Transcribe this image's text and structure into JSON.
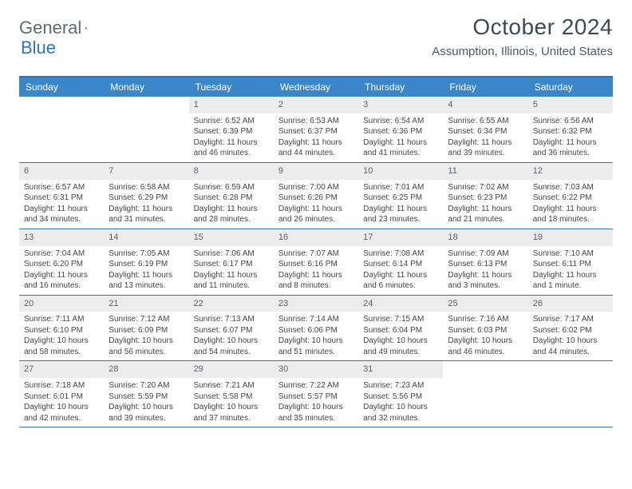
{
  "brand": {
    "word1": "General",
    "word2": "Blue"
  },
  "header": {
    "title": "October 2024",
    "location": "Assumption, Illinois, United States"
  },
  "colors": {
    "header_bar": "#3a86c8",
    "rule": "#2f74b5",
    "day_bg": "#ececec",
    "text": "#333333",
    "brand_gray": "#5f6a72",
    "brand_blue": "#2f74b5"
  },
  "calendar": {
    "type": "table",
    "dow": [
      "Sunday",
      "Monday",
      "Tuesday",
      "Wednesday",
      "Thursday",
      "Friday",
      "Saturday"
    ],
    "weeks": [
      [
        null,
        null,
        {
          "day": "1",
          "sunrise": "Sunrise: 6:52 AM",
          "sunset": "Sunset: 6:39 PM",
          "daylight": "Daylight: 11 hours and 46 minutes."
        },
        {
          "day": "2",
          "sunrise": "Sunrise: 6:53 AM",
          "sunset": "Sunset: 6:37 PM",
          "daylight": "Daylight: 11 hours and 44 minutes."
        },
        {
          "day": "3",
          "sunrise": "Sunrise: 6:54 AM",
          "sunset": "Sunset: 6:36 PM",
          "daylight": "Daylight: 11 hours and 41 minutes."
        },
        {
          "day": "4",
          "sunrise": "Sunrise: 6:55 AM",
          "sunset": "Sunset: 6:34 PM",
          "daylight": "Daylight: 11 hours and 39 minutes."
        },
        {
          "day": "5",
          "sunrise": "Sunrise: 6:56 AM",
          "sunset": "Sunset: 6:32 PM",
          "daylight": "Daylight: 11 hours and 36 minutes."
        }
      ],
      [
        {
          "day": "6",
          "sunrise": "Sunrise: 6:57 AM",
          "sunset": "Sunset: 6:31 PM",
          "daylight": "Daylight: 11 hours and 34 minutes."
        },
        {
          "day": "7",
          "sunrise": "Sunrise: 6:58 AM",
          "sunset": "Sunset: 6:29 PM",
          "daylight": "Daylight: 11 hours and 31 minutes."
        },
        {
          "day": "8",
          "sunrise": "Sunrise: 6:59 AM",
          "sunset": "Sunset: 6:28 PM",
          "daylight": "Daylight: 11 hours and 28 minutes."
        },
        {
          "day": "9",
          "sunrise": "Sunrise: 7:00 AM",
          "sunset": "Sunset: 6:26 PM",
          "daylight": "Daylight: 11 hours and 26 minutes."
        },
        {
          "day": "10",
          "sunrise": "Sunrise: 7:01 AM",
          "sunset": "Sunset: 6:25 PM",
          "daylight": "Daylight: 11 hours and 23 minutes."
        },
        {
          "day": "11",
          "sunrise": "Sunrise: 7:02 AM",
          "sunset": "Sunset: 6:23 PM",
          "daylight": "Daylight: 11 hours and 21 minutes."
        },
        {
          "day": "12",
          "sunrise": "Sunrise: 7:03 AM",
          "sunset": "Sunset: 6:22 PM",
          "daylight": "Daylight: 11 hours and 18 minutes."
        }
      ],
      [
        {
          "day": "13",
          "sunrise": "Sunrise: 7:04 AM",
          "sunset": "Sunset: 6:20 PM",
          "daylight": "Daylight: 11 hours and 16 minutes."
        },
        {
          "day": "14",
          "sunrise": "Sunrise: 7:05 AM",
          "sunset": "Sunset: 6:19 PM",
          "daylight": "Daylight: 11 hours and 13 minutes."
        },
        {
          "day": "15",
          "sunrise": "Sunrise: 7:06 AM",
          "sunset": "Sunset: 6:17 PM",
          "daylight": "Daylight: 11 hours and 11 minutes."
        },
        {
          "day": "16",
          "sunrise": "Sunrise: 7:07 AM",
          "sunset": "Sunset: 6:16 PM",
          "daylight": "Daylight: 11 hours and 8 minutes."
        },
        {
          "day": "17",
          "sunrise": "Sunrise: 7:08 AM",
          "sunset": "Sunset: 6:14 PM",
          "daylight": "Daylight: 11 hours and 6 minutes."
        },
        {
          "day": "18",
          "sunrise": "Sunrise: 7:09 AM",
          "sunset": "Sunset: 6:13 PM",
          "daylight": "Daylight: 11 hours and 3 minutes."
        },
        {
          "day": "19",
          "sunrise": "Sunrise: 7:10 AM",
          "sunset": "Sunset: 6:11 PM",
          "daylight": "Daylight: 11 hours and 1 minute."
        }
      ],
      [
        {
          "day": "20",
          "sunrise": "Sunrise: 7:11 AM",
          "sunset": "Sunset: 6:10 PM",
          "daylight": "Daylight: 10 hours and 58 minutes."
        },
        {
          "day": "21",
          "sunrise": "Sunrise: 7:12 AM",
          "sunset": "Sunset: 6:09 PM",
          "daylight": "Daylight: 10 hours and 56 minutes."
        },
        {
          "day": "22",
          "sunrise": "Sunrise: 7:13 AM",
          "sunset": "Sunset: 6:07 PM",
          "daylight": "Daylight: 10 hours and 54 minutes."
        },
        {
          "day": "23",
          "sunrise": "Sunrise: 7:14 AM",
          "sunset": "Sunset: 6:06 PM",
          "daylight": "Daylight: 10 hours and 51 minutes."
        },
        {
          "day": "24",
          "sunrise": "Sunrise: 7:15 AM",
          "sunset": "Sunset: 6:04 PM",
          "daylight": "Daylight: 10 hours and 49 minutes."
        },
        {
          "day": "25",
          "sunrise": "Sunrise: 7:16 AM",
          "sunset": "Sunset: 6:03 PM",
          "daylight": "Daylight: 10 hours and 46 minutes."
        },
        {
          "day": "26",
          "sunrise": "Sunrise: 7:17 AM",
          "sunset": "Sunset: 6:02 PM",
          "daylight": "Daylight: 10 hours and 44 minutes."
        }
      ],
      [
        {
          "day": "27",
          "sunrise": "Sunrise: 7:18 AM",
          "sunset": "Sunset: 6:01 PM",
          "daylight": "Daylight: 10 hours and 42 minutes."
        },
        {
          "day": "28",
          "sunrise": "Sunrise: 7:20 AM",
          "sunset": "Sunset: 5:59 PM",
          "daylight": "Daylight: 10 hours and 39 minutes."
        },
        {
          "day": "29",
          "sunrise": "Sunrise: 7:21 AM",
          "sunset": "Sunset: 5:58 PM",
          "daylight": "Daylight: 10 hours and 37 minutes."
        },
        {
          "day": "30",
          "sunrise": "Sunrise: 7:22 AM",
          "sunset": "Sunset: 5:57 PM",
          "daylight": "Daylight: 10 hours and 35 minutes."
        },
        {
          "day": "31",
          "sunrise": "Sunrise: 7:23 AM",
          "sunset": "Sunset: 5:56 PM",
          "daylight": "Daylight: 10 hours and 32 minutes."
        },
        null,
        null
      ]
    ]
  }
}
